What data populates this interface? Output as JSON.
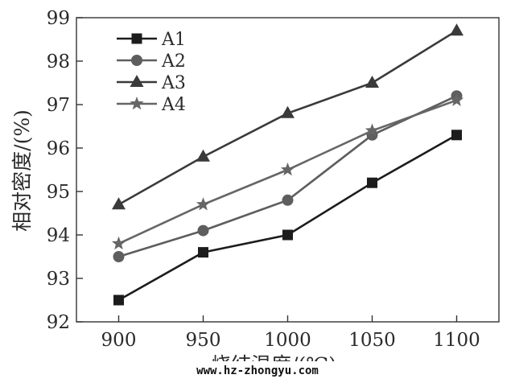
{
  "chart_data": {
    "type": "line",
    "x": [
      900,
      950,
      1000,
      1050,
      1100
    ],
    "xlabel": "烧结温度/(℃)",
    "ylabel": "相对密度/(%)",
    "xlim": [
      875,
      1125
    ],
    "ylim": [
      92,
      99
    ],
    "xticks": [
      "900",
      "950",
      "1000",
      "1050",
      "1100"
    ],
    "yticks": [
      "92",
      "93",
      "94",
      "95",
      "96",
      "97",
      "98",
      "99"
    ],
    "grid": false,
    "legend_position": "top-left",
    "series": [
      {
        "name": "A1",
        "marker": "square",
        "color": "#1c1c1c",
        "values": [
          92.5,
          93.6,
          94.0,
          95.2,
          96.3
        ]
      },
      {
        "name": "A2",
        "marker": "circle",
        "color": "#5e5e5e",
        "values": [
          93.5,
          94.1,
          94.8,
          96.3,
          97.2
        ]
      },
      {
        "name": "A3",
        "marker": "triangle",
        "color": "#3a3a3a",
        "values": [
          94.7,
          95.8,
          96.8,
          97.5,
          98.7
        ]
      },
      {
        "name": "A4",
        "marker": "star",
        "color": "#666666",
        "values": [
          93.8,
          94.7,
          95.5,
          96.4,
          97.1
        ]
      }
    ]
  },
  "watermark": "www.hz-zhongyu.com"
}
